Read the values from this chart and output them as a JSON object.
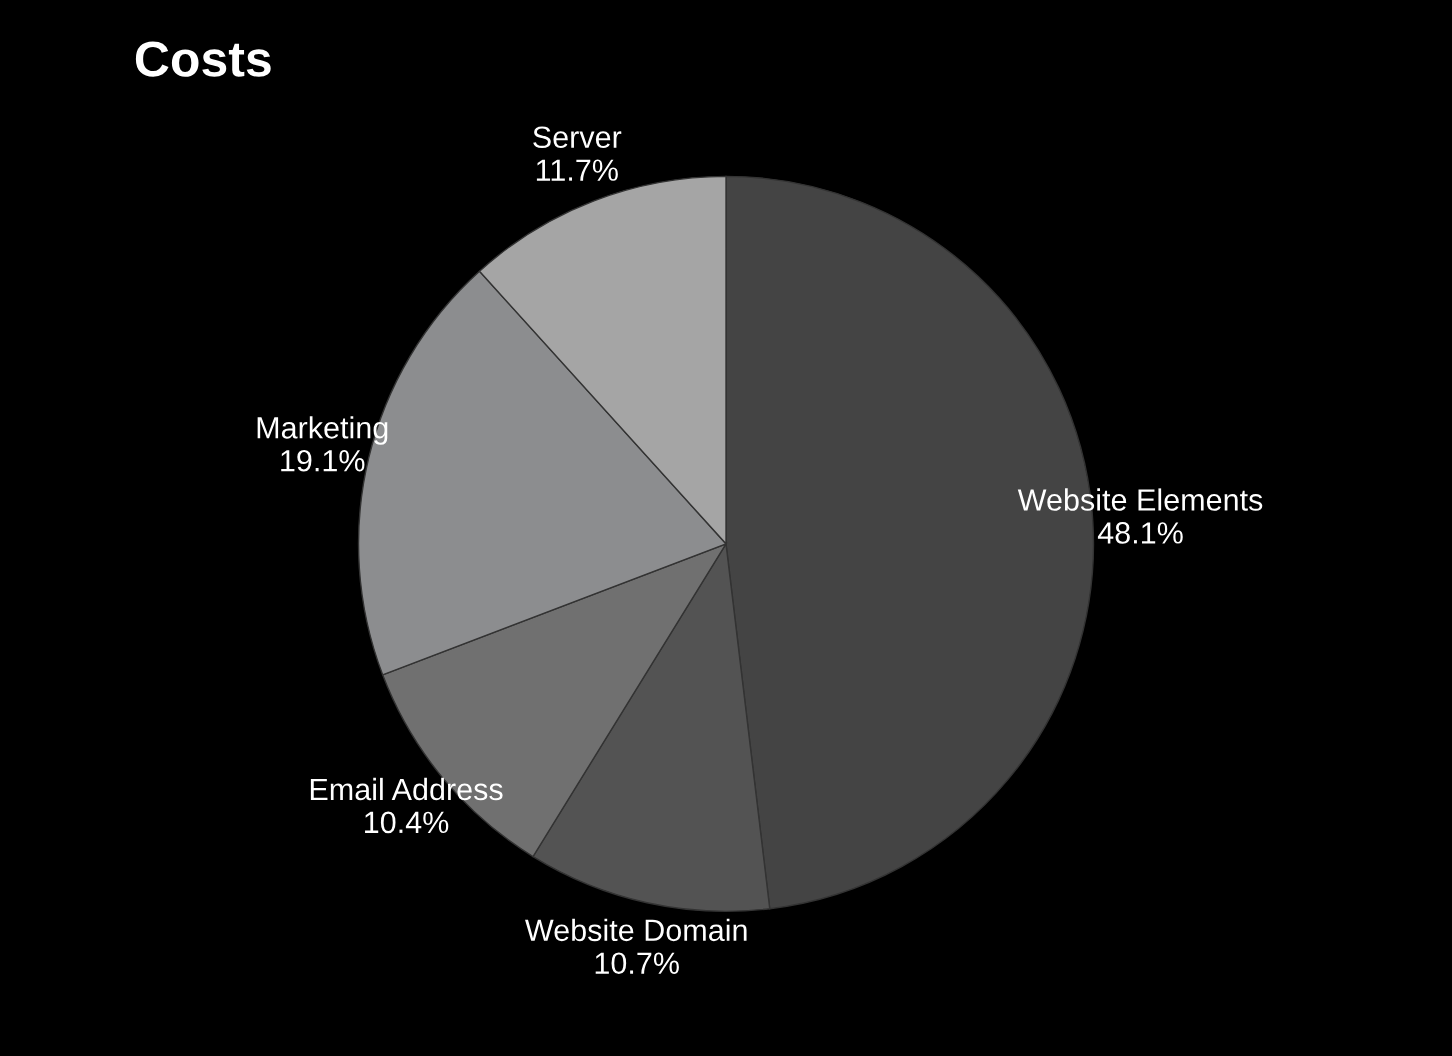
{
  "chart_data": {
    "type": "pie",
    "title": "Costs",
    "categories": [
      "Website Elements",
      "Website Domain",
      "Email Address",
      "Marketing",
      "Server"
    ],
    "values": [
      48.1,
      10.7,
      10.4,
      19.1,
      11.7
    ],
    "value_labels": [
      "48.1%",
      "10.7%",
      "10.4%",
      "19.1%",
      "11.7%"
    ],
    "colors": [
      "#444444",
      "#535353",
      "#707070",
      "#8c8d8f",
      "#a5a5a5"
    ]
  }
}
